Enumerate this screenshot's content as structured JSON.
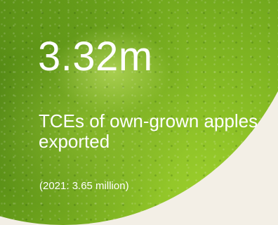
{
  "stat": {
    "value": "3.32m",
    "description": "TCEs of own-grown apples exported",
    "comparison": "(2021: 3.65 million)"
  },
  "colors": {
    "background": "#f3efe6",
    "apple_green": "#6fa61c",
    "text": "#ffffff"
  },
  "visuals": {
    "background_image": "green-apple-skin-closeup"
  }
}
